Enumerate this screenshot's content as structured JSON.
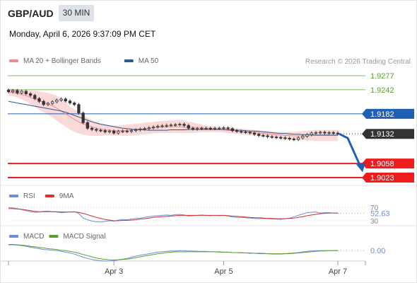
{
  "header": {
    "symbol": "GBP/AUD",
    "timeframe": "30 MIN",
    "datetime": "Monday, April 6, 2026 9:37:09 PM CET"
  },
  "credit": "Research © 2026 Trading Central",
  "colors": {
    "green": "#5aa02c",
    "blue": "#1f5fb4",
    "red": "#ee1c1c",
    "dark": "#333333",
    "band": "#f9d2d2",
    "ma20": "#f28c8c",
    "ma50": "#2c5a94",
    "rsi": "#6b8ed6",
    "rsi_ma": "#d93030",
    "macd": "#6b8ed6",
    "macd_signal": "#5aa02c"
  },
  "chart_data": [
    {
      "type": "candlestick",
      "legend": [
        {
          "name": "MA 20 + Bollinger Bands",
          "color": "#f28c8c"
        },
        {
          "name": "MA 50",
          "color": "#2c5a94"
        }
      ],
      "x_ticks": [
        "Apr 3",
        "Apr 5",
        "Apr 7"
      ],
      "ylim": [
        1.9003,
        1.9297
      ],
      "levels": [
        {
          "value": 1.9277,
          "label": "1.9277",
          "kind": "resistance"
        },
        {
          "value": 1.9242,
          "label": "1.9242",
          "kind": "resistance"
        },
        {
          "value": 1.9182,
          "label": "1.9182",
          "kind": "pivot"
        },
        {
          "value": 1.9132,
          "label": "1.9132",
          "kind": "last"
        },
        {
          "value": 1.9058,
          "label": "1.9058",
          "kind": "support"
        },
        {
          "value": 1.9023,
          "label": "1.9023",
          "kind": "support"
        }
      ],
      "close": [
        1.9237,
        1.924,
        1.9234,
        1.9238,
        1.9232,
        1.9228,
        1.922,
        1.9213,
        1.9205,
        1.9208,
        1.9212,
        1.9216,
        1.9219,
        1.9214,
        1.9209,
        1.9205,
        1.9184,
        1.916,
        1.9146,
        1.9143,
        1.9141,
        1.914,
        1.9137,
        1.9139,
        1.9134,
        1.9138,
        1.9139,
        1.9138,
        1.914,
        1.9142,
        1.9144,
        1.9145,
        1.9147,
        1.9149,
        1.9151,
        1.9152,
        1.9153,
        1.9154,
        1.9155,
        1.9156,
        1.9153,
        1.9146,
        1.9144,
        1.9145,
        1.9146,
        1.9146,
        1.9145,
        1.9146,
        1.9146,
        1.9147,
        1.9145,
        1.914,
        1.9138,
        1.9137,
        1.9136,
        1.9134,
        1.9131,
        1.9128,
        1.9127,
        1.9125,
        1.9124,
        1.9123,
        1.9122,
        1.9121,
        1.9119,
        1.9118,
        1.9122,
        1.9126,
        1.913,
        1.9134,
        1.9135,
        1.9136,
        1.9134,
        1.9135,
        1.9134,
        1.9132
      ],
      "ma20": [
        1.9236,
        1.9235,
        1.9233,
        1.923,
        1.9227,
        1.9223,
        1.9219,
        1.9215,
        1.9211,
        1.9207,
        1.9202,
        1.9196,
        1.9189,
        1.9182,
        1.9175,
        1.9168,
        1.9162,
        1.9157,
        1.9153,
        1.9149,
        1.9146,
        1.9144,
        1.9142,
        1.9141,
        1.914,
        1.914,
        1.914,
        1.9141,
        1.9142,
        1.9143,
        1.9144,
        1.9145,
        1.9146,
        1.9147,
        1.9148,
        1.9149,
        1.9149,
        1.915,
        1.915,
        1.915,
        1.9149,
        1.9149,
        1.9148,
        1.9148,
        1.9147,
        1.9146,
        1.9145,
        1.9144,
        1.9143,
        1.9142,
        1.9141,
        1.914,
        1.9139,
        1.9138,
        1.9137,
        1.9136,
        1.9135,
        1.9134,
        1.9133,
        1.9132,
        1.9131,
        1.913,
        1.9129,
        1.9128,
        1.9128,
        1.9127,
        1.9127,
        1.9127,
        1.9127,
        1.9128,
        1.9128,
        1.9128,
        1.9128,
        1.9128,
        1.9128,
        1.9128
      ],
      "ma50": [
        1.9213,
        1.9211,
        1.9209,
        1.9207,
        1.9205,
        1.9203,
        1.9201,
        1.9199,
        1.9197,
        1.9195,
        1.9193,
        1.9191,
        1.9189,
        1.9186,
        1.9182,
        1.9178,
        1.9174,
        1.917,
        1.9166,
        1.9162,
        1.9159,
        1.9156,
        1.9154,
        1.9152,
        1.915,
        1.9148,
        1.9146,
        1.9145,
        1.9144,
        1.9143,
        1.9142,
        1.9142,
        1.9141,
        1.9141,
        1.9141,
        1.9141,
        1.9141,
        1.9142,
        1.9142,
        1.9142,
        1.9142,
        1.9143,
        1.9143,
        1.9143,
        1.9143,
        1.9143,
        1.9143,
        1.9143,
        1.9143,
        1.9143,
        1.9142,
        1.9142,
        1.9141,
        1.9141,
        1.914,
        1.9139,
        1.9139,
        1.9138,
        1.9137,
        1.9136,
        1.9135,
        1.9134,
        1.9133,
        1.9133,
        1.9132,
        1.9131,
        1.9131,
        1.913,
        1.913,
        1.913,
        1.9129,
        1.9129,
        1.9129,
        1.9129,
        1.9129,
        1.9129
      ],
      "bb_upper": [
        1.9244,
        1.9244,
        1.9243,
        1.9242,
        1.9241,
        1.924,
        1.9239,
        1.9238,
        1.9236,
        1.9234,
        1.9231,
        1.9227,
        1.922,
        1.9212,
        1.92,
        1.9193,
        1.9186,
        1.9179,
        1.9172,
        1.9167,
        1.9162,
        1.9158,
        1.9156,
        1.9154,
        1.9153,
        1.9153,
        1.9154,
        1.9155,
        1.9156,
        1.9157,
        1.9158,
        1.916,
        1.9161,
        1.9162,
        1.9163,
        1.9164,
        1.9165,
        1.9166,
        1.9166,
        1.9167,
        1.9165,
        1.9163,
        1.916,
        1.9158,
        1.9155,
        1.9152,
        1.9151,
        1.915,
        1.915,
        1.9149,
        1.9148,
        1.9147,
        1.9146,
        1.9145,
        1.9144,
        1.9143,
        1.9142,
        1.9141,
        1.914,
        1.9139,
        1.9138,
        1.9137,
        1.9136,
        1.9136,
        1.9137,
        1.9137,
        1.9138,
        1.9139,
        1.914,
        1.9141,
        1.9142,
        1.9142,
        1.9142,
        1.9142,
        1.9142,
        1.9142
      ],
      "bb_lower": [
        1.9228,
        1.9226,
        1.9223,
        1.9218,
        1.9213,
        1.9206,
        1.9199,
        1.9192,
        1.9186,
        1.918,
        1.9173,
        1.9165,
        1.9157,
        1.915,
        1.9143,
        1.9137,
        1.9133,
        1.913,
        1.9128,
        1.9127,
        1.9127,
        1.9127,
        1.9128,
        1.9128,
        1.9128,
        1.9128,
        1.9127,
        1.9127,
        1.9128,
        1.9129,
        1.913,
        1.9131,
        1.9132,
        1.9133,
        1.9134,
        1.9134,
        1.9134,
        1.9134,
        1.9134,
        1.9134,
        1.9134,
        1.9134,
        1.9134,
        1.9135,
        1.9136,
        1.9136,
        1.9136,
        1.9136,
        1.9136,
        1.9135,
        1.9134,
        1.9133,
        1.9132,
        1.9131,
        1.913,
        1.9129,
        1.9128,
        1.9127,
        1.9125,
        1.9124,
        1.9123,
        1.9121,
        1.912,
        1.9119,
        1.9118,
        1.9117,
        1.9116,
        1.9116,
        1.9115,
        1.9115,
        1.9114,
        1.9114,
        1.9114,
        1.9114,
        1.9114,
        1.9114
      ],
      "forecast": [
        1.9132,
        1.904
      ]
    },
    {
      "type": "line",
      "legend": [
        {
          "name": "RSI",
          "color": "#6b8ed6"
        },
        {
          "name": "9MA",
          "color": "#d93030"
        }
      ],
      "ylim": [
        25,
        75
      ],
      "levels": [
        70,
        30
      ],
      "value_label": "52.63",
      "rsi": [
        69,
        68,
        66,
        63,
        60,
        57,
        55,
        56,
        58,
        59,
        57,
        56,
        54,
        55,
        56,
        57,
        52,
        38,
        33,
        29,
        27,
        26,
        28,
        30,
        29,
        32,
        34,
        33,
        35,
        37,
        38,
        40,
        42,
        44,
        45,
        46,
        47,
        46,
        48,
        49,
        47,
        44,
        45,
        46,
        47,
        46,
        45,
        46,
        45,
        46,
        44,
        41,
        40,
        40,
        39,
        38,
        37,
        36,
        37,
        36,
        35,
        35,
        34,
        36,
        38,
        42,
        46,
        50,
        54,
        55,
        56,
        53,
        54,
        54,
        53,
        52.63
      ],
      "rsi_ma": [
        66,
        66,
        65,
        64,
        62,
        60,
        58,
        57,
        57,
        57,
        57,
        57,
        56,
        56,
        56,
        56,
        55,
        52,
        48,
        44,
        40,
        37,
        34,
        32,
        30,
        30,
        31,
        31,
        32,
        33,
        35,
        36,
        38,
        40,
        41,
        42,
        43,
        44,
        45,
        46,
        46,
        46,
        46,
        46,
        46,
        46,
        46,
        46,
        46,
        46,
        45,
        44,
        43,
        42,
        41,
        40,
        39,
        39,
        38,
        37,
        37,
        36,
        36,
        36,
        37,
        38,
        40,
        42,
        45,
        47,
        49,
        51,
        52,
        53,
        53,
        53
      ]
    },
    {
      "type": "line",
      "legend": [
        {
          "name": "MACD",
          "color": "#6b8ed6"
        },
        {
          "name": "MACD Signal",
          "color": "#5aa02c"
        }
      ],
      "ylim": [
        -0.0034,
        0.0024
      ],
      "levels": [
        0
      ],
      "value_label": "0.00",
      "macd": [
        0.0015,
        0.0015,
        0.0014,
        0.0013,
        0.0011,
        0.0009,
        0.0007,
        0.0005,
        0.0003,
        0.0002,
        0.0001,
        0.0,
        -0.0002,
        -0.0004,
        -0.0006,
        -0.0009,
        -0.0013,
        -0.0017,
        -0.002,
        -0.0023,
        -0.0025,
        -0.0026,
        -0.0027,
        -0.0027,
        -0.0026,
        -0.0024,
        -0.0022,
        -0.002,
        -0.0017,
        -0.0014,
        -0.0012,
        -0.001,
        -0.0008,
        -0.0006,
        -0.0004,
        -0.0003,
        -0.0002,
        -0.0001,
        -0.0001,
        0.0,
        0.0,
        -0.0001,
        -0.0001,
        -0.0002,
        -0.0002,
        -0.0002,
        -0.0003,
        -0.0003,
        -0.0003,
        -0.0004,
        -0.0004,
        -0.0005,
        -0.0005,
        -0.0006,
        -0.0006,
        -0.0007,
        -0.0007,
        -0.0008,
        -0.0008,
        -0.0008,
        -0.0009,
        -0.0009,
        -0.0009,
        -0.0008,
        -0.0007,
        -0.0006,
        -0.0005,
        -0.0003,
        -0.0002,
        -0.0001,
        0.0,
        0.0,
        0.0,
        0.0,
        0.0,
        0.0
      ],
      "macd_signal": [
        0.0016,
        0.0016,
        0.0015,
        0.0014,
        0.0013,
        0.0011,
        0.001,
        0.0008,
        0.0007,
        0.0005,
        0.0004,
        0.0003,
        0.0001,
        0.0,
        -0.0002,
        -0.0004,
        -0.0007,
        -0.001,
        -0.0013,
        -0.0016,
        -0.0019,
        -0.0021,
        -0.0023,
        -0.0024,
        -0.0024,
        -0.0024,
        -0.0023,
        -0.0022,
        -0.002,
        -0.0018,
        -0.0016,
        -0.0014,
        -0.0012,
        -0.001,
        -0.0008,
        -0.0007,
        -0.0005,
        -0.0004,
        -0.0003,
        -0.0003,
        -0.0003,
        -0.0003,
        -0.0003,
        -0.0003,
        -0.0003,
        -0.0003,
        -0.0003,
        -0.0003,
        -0.0004,
        -0.0004,
        -0.0004,
        -0.0005,
        -0.0005,
        -0.0005,
        -0.0006,
        -0.0006,
        -0.0007,
        -0.0007,
        -0.0007,
        -0.0008,
        -0.0008,
        -0.0008,
        -0.0008,
        -0.0008,
        -0.0008,
        -0.0007,
        -0.0006,
        -0.0005,
        -0.0004,
        -0.0003,
        -0.0002,
        -0.0001,
        -0.0001,
        0.0,
        0.0,
        0.0
      ]
    }
  ]
}
